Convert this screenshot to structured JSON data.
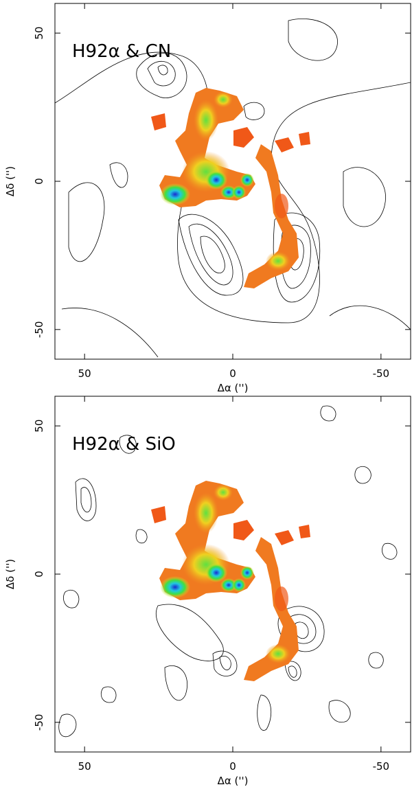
{
  "chart_data": [
    {
      "type": "image",
      "annotation": "H92α & CN",
      "xlabel": "Δα ('')",
      "ylabel": "Δδ ('')",
      "xlim": [
        60,
        -60
      ],
      "ylim": [
        -60,
        60
      ],
      "xticks": [
        50,
        0,
        -50
      ],
      "yticks": [
        -50,
        0,
        50
      ]
    },
    {
      "type": "image",
      "annotation": "H92α & SiO",
      "xlabel": "Δα ('')",
      "ylabel": "Δδ ('')",
      "xlim": [
        60,
        -60
      ],
      "ylim": [
        -60,
        60
      ],
      "xticks": [
        50,
        0,
        -50
      ],
      "yticks": [
        -50,
        0,
        50
      ]
    }
  ]
}
